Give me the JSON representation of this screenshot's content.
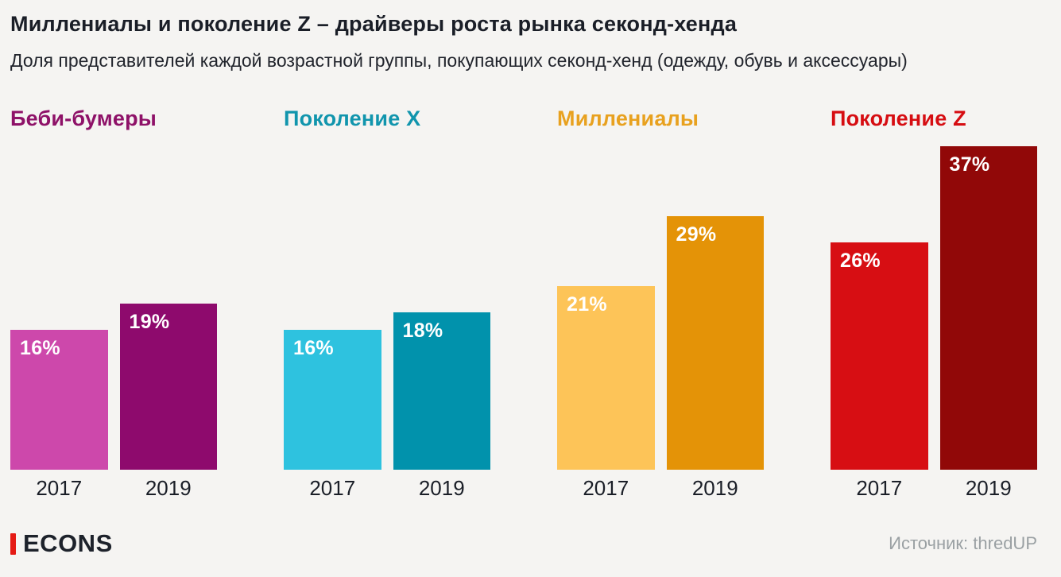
{
  "header": {
    "title": "Миллениалы и поколение Z – драйверы роста рынка секонд-хенда",
    "subtitle": "Доля представителей каждой возрастной группы, покупающих секонд-хенд (одежду, обувь и аксессуары)"
  },
  "chart_data": {
    "type": "bar",
    "unit": "%",
    "categories": [
      "2017",
      "2019"
    ],
    "ylabel": "",
    "xlabel": "",
    "ylim": [
      0,
      40
    ],
    "grid": false,
    "legend": "none",
    "value_label_position": "inside-top-left",
    "groups": [
      {
        "label": "Беби-бумеры",
        "label_color": "#8e1168",
        "values": [
          16,
          19
        ],
        "bar_colors": [
          "#cd48ab",
          "#8e0a6d"
        ]
      },
      {
        "label": "Поколение X",
        "label_color": "#1195ad",
        "values": [
          16,
          18
        ],
        "bar_colors": [
          "#2ec2df",
          "#0192ac"
        ]
      },
      {
        "label": "Миллениалы",
        "label_color": "#e8a11f",
        "values": [
          21,
          29
        ],
        "bar_colors": [
          "#fdc458",
          "#e49307"
        ]
      },
      {
        "label": "Поколение Z",
        "label_color": "#d60d12",
        "values": [
          26,
          37
        ],
        "bar_colors": [
          "#d70e13",
          "#910808"
        ]
      }
    ]
  },
  "footer": {
    "brand": "ECONS",
    "brand_accent_color": "#e51b15",
    "source": "Источник: thredUP"
  },
  "colors": {
    "background": "#f5f4f2",
    "text": "#1a1e27",
    "source_text": "#9aa0a3"
  }
}
